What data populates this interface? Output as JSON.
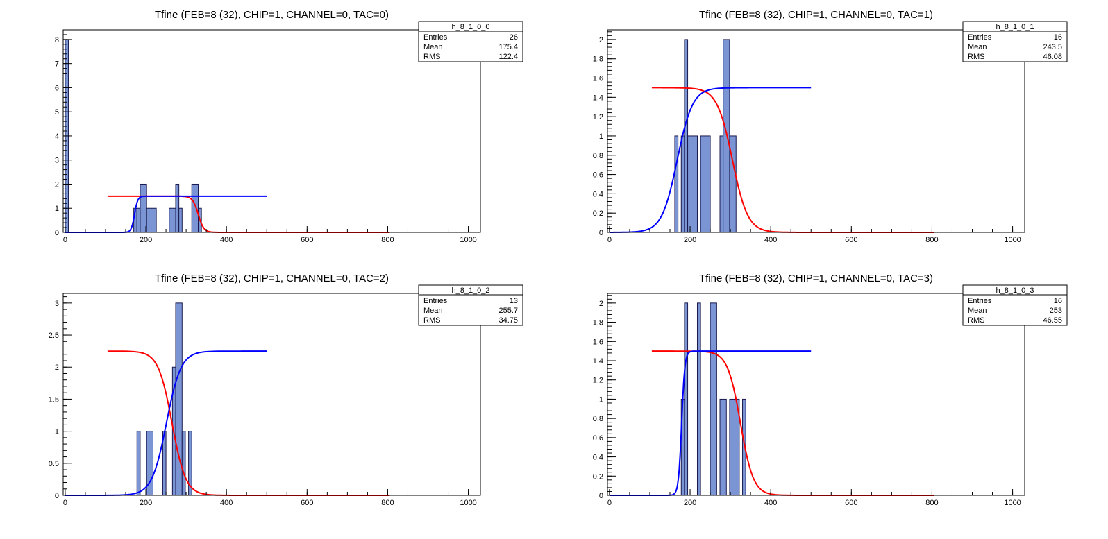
{
  "chart_data": [
    {
      "type": "bar",
      "title": "Tfine (FEB=8 (32), CHIP=1, CHANNEL=0, TAC=0)",
      "xlabel": "",
      "ylabel": "",
      "xlim": [
        -5,
        1030
      ],
      "ylim": [
        0,
        8.4
      ],
      "x_ticks": [
        0,
        200,
        400,
        600,
        800,
        1000
      ],
      "y_ticks": [
        0,
        1,
        2,
        3,
        4,
        5,
        6,
        7,
        8
      ],
      "stats": {
        "name": "h_8_1_0_0",
        "rows": [
          {
            "label": "Entries",
            "value": "26"
          },
          {
            "label": "Mean",
            "value": "175.4"
          },
          {
            "label": "RMS",
            "value": "122.4"
          }
        ]
      },
      "bins": [
        {
          "x0": 0,
          "x1": 8,
          "y": 8
        },
        {
          "x0": 170,
          "x1": 178,
          "y": 1
        },
        {
          "x0": 178,
          "x1": 186,
          "y": 1
        },
        {
          "x0": 186,
          "x1": 202,
          "y": 2
        },
        {
          "x0": 202,
          "x1": 226,
          "y": 1
        },
        {
          "x0": 258,
          "x1": 274,
          "y": 1
        },
        {
          "x0": 274,
          "x1": 282,
          "y": 2
        },
        {
          "x0": 282,
          "x1": 290,
          "y": 1
        },
        {
          "x0": 314,
          "x1": 330,
          "y": 2
        },
        {
          "x0": 330,
          "x1": 338,
          "y": 1
        }
      ],
      "curves": [
        {
          "color": "#ff0000",
          "x_range": [
            105,
            805
          ],
          "amplitude": 1.5,
          "direction": "fall",
          "center": 330,
          "width": 7
        },
        {
          "color": "#0000ff",
          "x_range": [
            0,
            500
          ],
          "amplitude": 1.5,
          "direction": "rise",
          "center": 172,
          "width": 4
        }
      ]
    },
    {
      "type": "bar",
      "title": "Tfine (FEB=8 (32), CHIP=1, CHANNEL=0, TAC=1)",
      "xlabel": "",
      "ylabel": "",
      "xlim": [
        -5,
        1030
      ],
      "ylim": [
        0,
        2.1
      ],
      "x_ticks": [
        0,
        200,
        400,
        600,
        800,
        1000
      ],
      "y_ticks": [
        0,
        0.2,
        0.4,
        0.6,
        0.8,
        1,
        1.2,
        1.4,
        1.6,
        1.8,
        2
      ],
      "stats": {
        "name": "h_8_1_0_1",
        "rows": [
          {
            "label": "Entries",
            "value": "16"
          },
          {
            "label": "Mean",
            "value": "243.5"
          },
          {
            "label": "RMS",
            "value": "46.08"
          }
        ]
      },
      "bins": [
        {
          "x0": 162,
          "x1": 170,
          "y": 1
        },
        {
          "x0": 178,
          "x1": 186,
          "y": 1
        },
        {
          "x0": 186,
          "x1": 194,
          "y": 2
        },
        {
          "x0": 194,
          "x1": 218,
          "y": 1
        },
        {
          "x0": 226,
          "x1": 250,
          "y": 1
        },
        {
          "x0": 274,
          "x1": 282,
          "y": 1
        },
        {
          "x0": 282,
          "x1": 298,
          "y": 2
        },
        {
          "x0": 298,
          "x1": 314,
          "y": 1
        }
      ],
      "curves": [
        {
          "color": "#ff0000",
          "x_range": [
            105,
            805
          ],
          "amplitude": 1.5,
          "direction": "fall",
          "center": 305,
          "width": 19
        },
        {
          "color": "#0000ff",
          "x_range": [
            0,
            500
          ],
          "amplitude": 1.5,
          "direction": "rise",
          "center": 168,
          "width": 19
        }
      ]
    },
    {
      "type": "bar",
      "title": "Tfine (FEB=8 (32), CHIP=1, CHANNEL=0, TAC=2)",
      "xlabel": "",
      "ylabel": "",
      "xlim": [
        -5,
        1030
      ],
      "ylim": [
        0,
        3.15
      ],
      "x_ticks": [
        0,
        200,
        400,
        600,
        800,
        1000
      ],
      "y_ticks": [
        0,
        0.5,
        1,
        1.5,
        2,
        2.5,
        3
      ],
      "stats": {
        "name": "h_8_1_0_2",
        "rows": [
          {
            "label": "Entries",
            "value": "13"
          },
          {
            "label": "Mean",
            "value": "255.7"
          },
          {
            "label": "RMS",
            "value": "34.75"
          }
        ]
      },
      "bins": [
        {
          "x0": 178,
          "x1": 186,
          "y": 1
        },
        {
          "x0": 202,
          "x1": 218,
          "y": 1
        },
        {
          "x0": 242,
          "x1": 250,
          "y": 1
        },
        {
          "x0": 266,
          "x1": 274,
          "y": 2
        },
        {
          "x0": 274,
          "x1": 290,
          "y": 3
        },
        {
          "x0": 290,
          "x1": 298,
          "y": 1
        },
        {
          "x0": 306,
          "x1": 314,
          "y": 1
        }
      ],
      "curves": [
        {
          "color": "#ff0000",
          "x_range": [
            105,
            805
          ],
          "amplitude": 2.25,
          "direction": "fall",
          "center": 265,
          "width": 17
        },
        {
          "color": "#0000ff",
          "x_range": [
            0,
            500
          ],
          "amplitude": 2.25,
          "direction": "rise",
          "center": 251,
          "width": 18
        }
      ]
    },
    {
      "type": "bar",
      "title": "Tfine (FEB=8 (32), CHIP=1, CHANNEL=0, TAC=3)",
      "xlabel": "",
      "ylabel": "",
      "xlim": [
        -5,
        1030
      ],
      "ylim": [
        0,
        2.1
      ],
      "x_ticks": [
        0,
        200,
        400,
        600,
        800,
        1000
      ],
      "y_ticks": [
        0,
        0.2,
        0.4,
        0.6,
        0.8,
        1,
        1.2,
        1.4,
        1.6,
        1.8,
        2
      ],
      "stats": {
        "name": "h_8_1_0_3",
        "rows": [
          {
            "label": "Entries",
            "value": "16"
          },
          {
            "label": "Mean",
            "value": "253"
          },
          {
            "label": "RMS",
            "value": "46.55"
          }
        ]
      },
      "bins": [
        {
          "x0": 178,
          "x1": 186,
          "y": 1
        },
        {
          "x0": 186,
          "x1": 194,
          "y": 2
        },
        {
          "x0": 218,
          "x1": 226,
          "y": 2
        },
        {
          "x0": 250,
          "x1": 266,
          "y": 2
        },
        {
          "x0": 274,
          "x1": 290,
          "y": 1
        },
        {
          "x0": 298,
          "x1": 322,
          "y": 1
        },
        {
          "x0": 330,
          "x1": 338,
          "y": 1
        }
      ],
      "curves": [
        {
          "color": "#ff0000",
          "x_range": [
            105,
            805
          ],
          "amplitude": 1.5,
          "direction": "fall",
          "center": 325,
          "width": 16
        },
        {
          "color": "#0000ff",
          "x_range": [
            0,
            500
          ],
          "amplitude": 1.5,
          "direction": "rise",
          "center": 179,
          "width": 4
        }
      ]
    }
  ]
}
